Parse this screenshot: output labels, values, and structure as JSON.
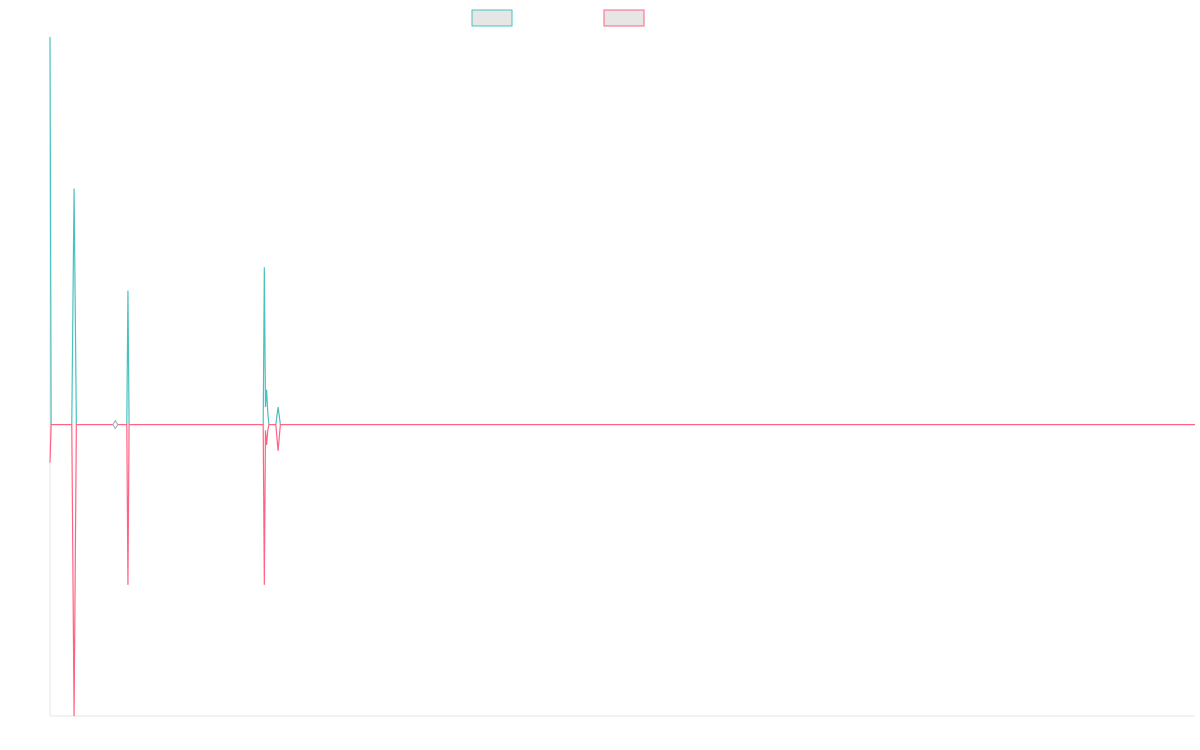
{
  "chart_data": {
    "type": "line",
    "title": "",
    "xlabel": "",
    "ylabel": "",
    "x": [
      0,
      1,
      2,
      3,
      4,
      5,
      6,
      7,
      8,
      9,
      10,
      11,
      12,
      13,
      14,
      15,
      16,
      17,
      18,
      19,
      20,
      21,
      22,
      23,
      24,
      25,
      26,
      27,
      28,
      29,
      30,
      31,
      32,
      33,
      34,
      35,
      36,
      37,
      38,
      39,
      40,
      41,
      42,
      43,
      44,
      45,
      46,
      47,
      48,
      49,
      50,
      51,
      52,
      53,
      54,
      55,
      56,
      57,
      58,
      59,
      60,
      61,
      62,
      63,
      64,
      65,
      66,
      67,
      68,
      69,
      70,
      71,
      72,
      73,
      74,
      75,
      76,
      77,
      78,
      79,
      80,
      81,
      82,
      83,
      84,
      85,
      86,
      87,
      88,
      89,
      90,
      91,
      92,
      93,
      94,
      95,
      96,
      97,
      98,
      99,
      100,
      101,
      102,
      103,
      104,
      105,
      106,
      107,
      108,
      109,
      110,
      111,
      112,
      113,
      114,
      115,
      116,
      117,
      118,
      119,
      120,
      121,
      122,
      123,
      124,
      125,
      126,
      127,
      128,
      129,
      130,
      131,
      132,
      133,
      134,
      135,
      136,
      137,
      138,
      139,
      140,
      141,
      142,
      143,
      144,
      145,
      146,
      147,
      148,
      149,
      150,
      151,
      152,
      153,
      154,
      155,
      156,
      157,
      158,
      159,
      160,
      161,
      162,
      163,
      164,
      165,
      166,
      167,
      168,
      169,
      170,
      171,
      172,
      173,
      174,
      175,
      176,
      177,
      178,
      179,
      180,
      181,
      182,
      183,
      184,
      185,
      186,
      187,
      188,
      189,
      190,
      191,
      192,
      193,
      194,
      195,
      196,
      197,
      198,
      199,
      200,
      201,
      202,
      203,
      204,
      205,
      206,
      207,
      208,
      209,
      210,
      211,
      212,
      213,
      214,
      215,
      216,
      217,
      218,
      219,
      220,
      221,
      222,
      223,
      224,
      225,
      226,
      227,
      228,
      229,
      230,
      231,
      232,
      233,
      234,
      235,
      236,
      237,
      238,
      239,
      240,
      241,
      242,
      243,
      244,
      245,
      246,
      247,
      248,
      249,
      250,
      251,
      252,
      253,
      254,
      255,
      256,
      257,
      258,
      259,
      260,
      261,
      262,
      263,
      264,
      265,
      266,
      267,
      268,
      269,
      270,
      271,
      272,
      273,
      274,
      275,
      276,
      277,
      278,
      279,
      280,
      281,
      282,
      283,
      284,
      285,
      286,
      287,
      288,
      289,
      290,
      291,
      292,
      293,
      294,
      295,
      296,
      297,
      298,
      299,
      300,
      301,
      302,
      303,
      304,
      305,
      306,
      307,
      308,
      309,
      310,
      311,
      312,
      313,
      314,
      315,
      316,
      317,
      318,
      319,
      320,
      321,
      322,
      323,
      324,
      325,
      326,
      327,
      328,
      329,
      330,
      331,
      332,
      333,
      334,
      335,
      336,
      337,
      338,
      339,
      340,
      341,
      342,
      343,
      344,
      345,
      346,
      347,
      348,
      349,
      350,
      351,
      352,
      353,
      354,
      355,
      356,
      357,
      358,
      359,
      360,
      361,
      362,
      363,
      364,
      365,
      366,
      367,
      368,
      369,
      370,
      371,
      372,
      373,
      374,
      375,
      376,
      377,
      378,
      379,
      380,
      381,
      382,
      383,
      384,
      385,
      386,
      387,
      388,
      389,
      390,
      391,
      392,
      393,
      394,
      395,
      396,
      397,
      398,
      399,
      400,
      401,
      402,
      403,
      404,
      405,
      406,
      407,
      408,
      409,
      410,
      411,
      412,
      413,
      414,
      415,
      416,
      417,
      418,
      419,
      420,
      421,
      422,
      423,
      424,
      425,
      426,
      427,
      428,
      429,
      430,
      431,
      432,
      433,
      434,
      435,
      436,
      437,
      438,
      439,
      440,
      441,
      442,
      443,
      444,
      445,
      446,
      447,
      448,
      449,
      450,
      451,
      452,
      453,
      454,
      455,
      456,
      457,
      458,
      459,
      460,
      461,
      462,
      463,
      464,
      465,
      466,
      467,
      468,
      469,
      470,
      471,
      472,
      473,
      474,
      475,
      476,
      477,
      478,
      479,
      480,
      481,
      482,
      483,
      484,
      485,
      486,
      487,
      488,
      489,
      490,
      491,
      492,
      493,
      494,
      495,
      496,
      497,
      498,
      499,
      500,
      501,
      502,
      503,
      504,
      505,
      506,
      507,
      508,
      509,
      510,
      511,
      512,
      513,
      514,
      515,
      516,
      517,
      518,
      519,
      520,
      521,
      522,
      523,
      524,
      525,
      526,
      527,
      528,
      529,
      530,
      531,
      532,
      533,
      534,
      535,
      536,
      537,
      538,
      539,
      540,
      541,
      542,
      543,
      544,
      545,
      546,
      547,
      548,
      549,
      550,
      551,
      552,
      553,
      554,
      555,
      556,
      557,
      558,
      559,
      560,
      561,
      562,
      563,
      564,
      565,
      566,
      567,
      568,
      569,
      570,
      571,
      572,
      573,
      574,
      575,
      576,
      577,
      578,
      579,
      580,
      581,
      582,
      583,
      584,
      585,
      586,
      587,
      588,
      589,
      590,
      591,
      592,
      593,
      594,
      595,
      596,
      597,
      598,
      599,
      600,
      601,
      602,
      603,
      604,
      605,
      606,
      607,
      608,
      609,
      610,
      611,
      612,
      613,
      614,
      615,
      616,
      617,
      618,
      619,
      620,
      621,
      622,
      623,
      624,
      625,
      626,
      627,
      628,
      629,
      630,
      631,
      632,
      633,
      634,
      635,
      636,
      637,
      638,
      639,
      640,
      641,
      642,
      643,
      644,
      645,
      646,
      647,
      648,
      649,
      650,
      651,
      652,
      653,
      654,
      655,
      656,
      657,
      658,
      659,
      660,
      661,
      662,
      663,
      664,
      665,
      666,
      667,
      668,
      669,
      670,
      671,
      672,
      673,
      674,
      675,
      676,
      677,
      678,
      679,
      680,
      681,
      682,
      683,
      684,
      685,
      686,
      687,
      688,
      689,
      690,
      691,
      692,
      693,
      694,
      695,
      696,
      697,
      698,
      699,
      700,
      701,
      702,
      703,
      704,
      705,
      706,
      707,
      708,
      709,
      710,
      711,
      712,
      713,
      714,
      715,
      716,
      717,
      718,
      719,
      720,
      721,
      722,
      723,
      724,
      725,
      726,
      727,
      728,
      729,
      730,
      731,
      732,
      733,
      734,
      735,
      736,
      737,
      738,
      739,
      740,
      741,
      742,
      743,
      744,
      745,
      746,
      747,
      748,
      749,
      750,
      751,
      752,
      753,
      754,
      755,
      756,
      757,
      758,
      759,
      760,
      761,
      762,
      763,
      764,
      765,
      766,
      767,
      768,
      769,
      770,
      771,
      772,
      773,
      774,
      775,
      776,
      777,
      778,
      779,
      780,
      781,
      782,
      783,
      784,
      785,
      786,
      787,
      788,
      789,
      790,
      791,
      792,
      793,
      794,
      795,
      796,
      797,
      798,
      799,
      800,
      801,
      802,
      803,
      804,
      805,
      806,
      807,
      808,
      809,
      810,
      811,
      812,
      813,
      814,
      815,
      816,
      817,
      818,
      819,
      820,
      821,
      822,
      823,
      824,
      825,
      826,
      827,
      828,
      829,
      830,
      831,
      832,
      833,
      834,
      835,
      836,
      837,
      838,
      839,
      840,
      841,
      842,
      843,
      844,
      845,
      846,
      847,
      848,
      849,
      850,
      851,
      852,
      853,
      854,
      855,
      856,
      857,
      858,
      859,
      860,
      861,
      862,
      863,
      864,
      865,
      866,
      867,
      868,
      869,
      870,
      871,
      872,
      873,
      874,
      875,
      876,
      877,
      878,
      879,
      880,
      881,
      882,
      883,
      884,
      885,
      886,
      887,
      888,
      889,
      890,
      891,
      892,
      893,
      894,
      895,
      896,
      897,
      898,
      899,
      900,
      901,
      902,
      903,
      904,
      905,
      906,
      907,
      908,
      909,
      910,
      911,
      912,
      913,
      914,
      915,
      916,
      917,
      918,
      919,
      920,
      921,
      922,
      923,
      924,
      925,
      926,
      927,
      928,
      929,
      930,
      931,
      932,
      933,
      934,
      935,
      936,
      937,
      938,
      939,
      940,
      941,
      942,
      943,
      944,
      945,
      946,
      947,
      948,
      949,
      950,
      951,
      952,
      953,
      954,
      955,
      956,
      957,
      958,
      959,
      960,
      961,
      962,
      963,
      964,
      965,
      966,
      967,
      968,
      969,
      970,
      971,
      972,
      973,
      974,
      975,
      976,
      977,
      978,
      979,
      980,
      981,
      982,
      983,
      984,
      985,
      986,
      987,
      988,
      989,
      990,
      991,
      992,
      993,
      994,
      995,
      996,
      997,
      998,
      999
    ],
    "ylim": [
      -1.0,
      1.33
    ],
    "grid": false,
    "legend_position": "top-center",
    "series": [
      {
        "name": "",
        "color": "#4bc0c0",
        "sparse_values": [
          [
            0,
            1.33
          ],
          [
            1,
            0
          ],
          [
            19,
            0
          ],
          [
            21,
            0.81
          ],
          [
            23,
            0
          ],
          [
            55,
            0
          ],
          [
            56,
            0
          ],
          [
            67,
            0
          ],
          [
            68,
            0.46
          ],
          [
            69,
            0
          ],
          [
            186,
            0
          ],
          [
            187,
            0.54
          ],
          [
            188,
            0.06
          ],
          [
            189,
            0.12
          ],
          [
            190,
            0.04
          ],
          [
            191,
            0
          ],
          [
            197,
            0
          ],
          [
            199,
            0.06
          ],
          [
            201,
            0
          ]
        ]
      },
      {
        "name": "",
        "color": "#ff6384",
        "sparse_values": [
          [
            0,
            -0.13
          ],
          [
            1,
            0
          ],
          [
            19,
            0
          ],
          [
            21,
            -1.0
          ],
          [
            23,
            0
          ],
          [
            55,
            0
          ],
          [
            56,
            0
          ],
          [
            67,
            0
          ],
          [
            68,
            -0.55
          ],
          [
            69,
            0
          ],
          [
            186,
            0
          ],
          [
            187,
            -0.55
          ],
          [
            188,
            -0.02
          ],
          [
            189,
            -0.07
          ],
          [
            190,
            -0.02
          ],
          [
            191,
            0
          ],
          [
            197,
            0
          ],
          [
            199,
            -0.09
          ],
          [
            201,
            0
          ]
        ]
      }
    ]
  }
}
